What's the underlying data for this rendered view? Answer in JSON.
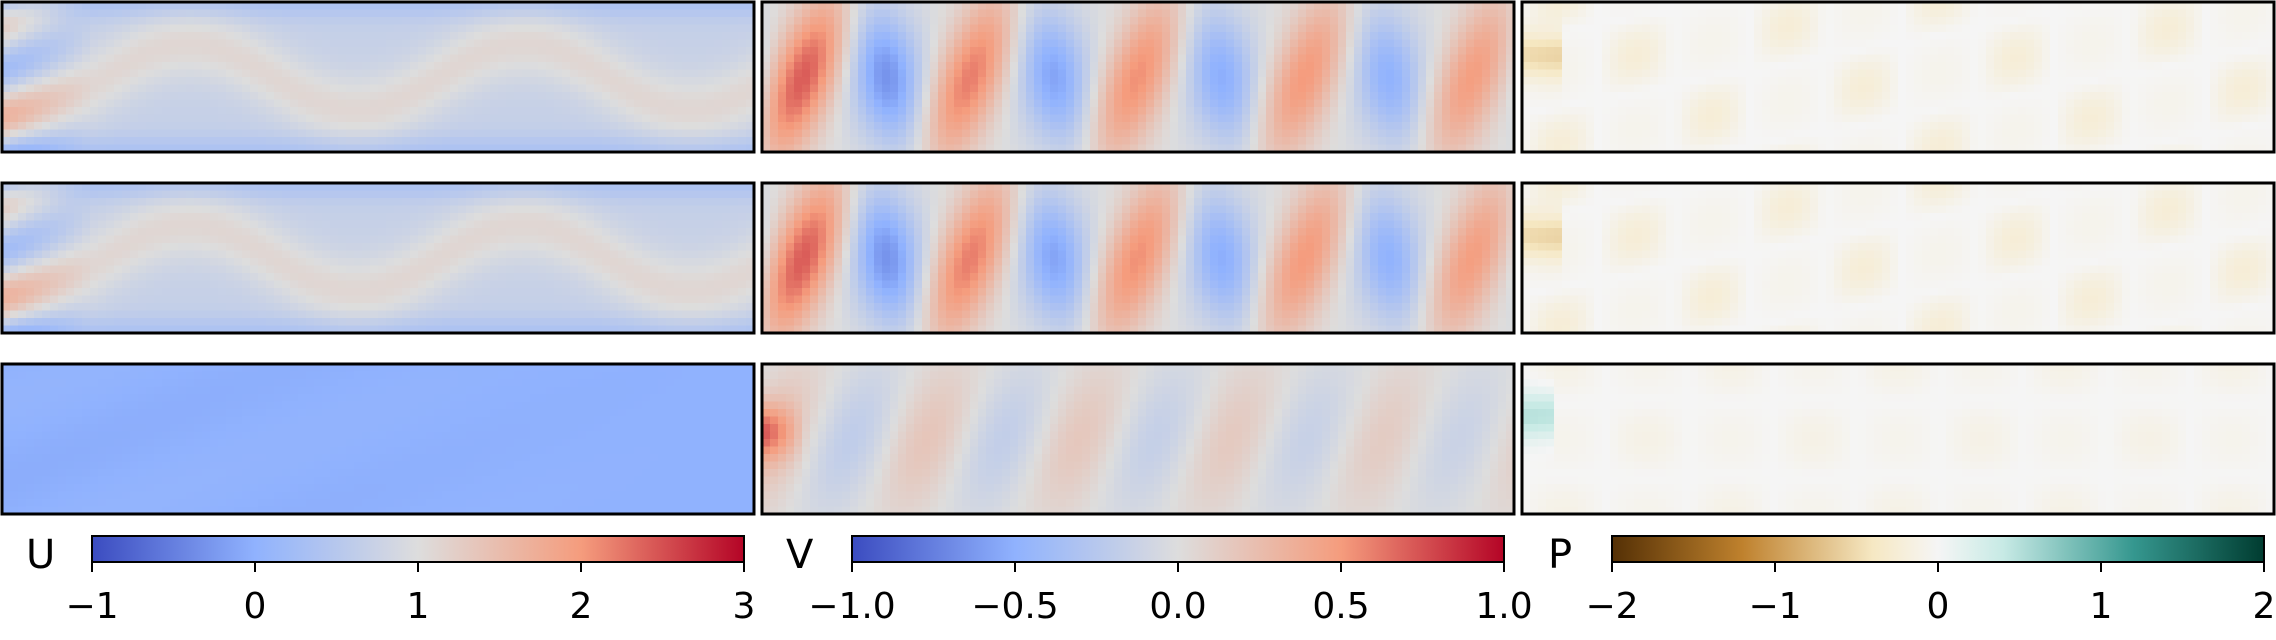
{
  "chart_data": {
    "type": "heatmap",
    "description_rows": 3,
    "columns": [
      {
        "field": "U",
        "colormap": "coolwarm",
        "colorbar": {
          "label": "U",
          "min": -1,
          "max": 3,
          "ticks": [
            "−1",
            "0",
            "1",
            "2",
            "3"
          ],
          "tick_values": [
            -1,
            0,
            1,
            2,
            3
          ]
        },
        "rows": [
          {
            "pattern": "wavy_bands",
            "base": 0.9,
            "amplitude": 0.35,
            "waves": 4.5
          },
          {
            "pattern": "wavy_bands",
            "base": 0.9,
            "amplitude": 0.35,
            "waves": 4.5
          },
          {
            "pattern": "uniform",
            "base": 0.05,
            "amplitude": 0.05,
            "waves": 3
          }
        ]
      },
      {
        "field": "V",
        "colormap": "coolwarm",
        "colorbar": {
          "label": "V",
          "min": -1.0,
          "max": 1.0,
          "ticks": [
            "−1.0",
            "−0.5",
            "0.0",
            "0.5",
            "1.0"
          ],
          "tick_values": [
            -1.0,
            -0.5,
            0.0,
            0.5,
            1.0
          ]
        },
        "rows": [
          {
            "pattern": "vortex_street",
            "base": 0.0,
            "amplitude": 0.75,
            "waves": 4.5
          },
          {
            "pattern": "vortex_street",
            "base": 0.0,
            "amplitude": 0.75,
            "waves": 4.5
          },
          {
            "pattern": "vortex_street_faint",
            "base": 0.0,
            "amplitude": 0.2,
            "waves": 4.5
          }
        ]
      },
      {
        "field": "P",
        "colormap": "BrBG",
        "colorbar": {
          "label": "P",
          "min": -2,
          "max": 2,
          "ticks": [
            "−2",
            "−1",
            "0",
            "1",
            "2"
          ],
          "tick_values": [
            -2,
            -1,
            0,
            1,
            2
          ]
        },
        "rows": [
          {
            "pattern": "blobs",
            "base": 0.0,
            "amplitude": 0.3,
            "waves": 4.5
          },
          {
            "pattern": "blobs",
            "base": 0.0,
            "amplitude": 0.3,
            "waves": 4.5
          },
          {
            "pattern": "blobs_faint",
            "base": 0.0,
            "amplitude": 0.12,
            "waves": 4.5
          }
        ]
      }
    ]
  }
}
